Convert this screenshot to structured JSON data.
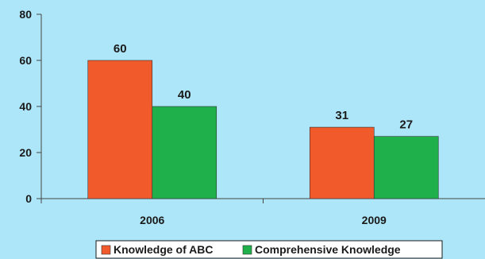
{
  "chart_data": {
    "type": "bar",
    "categories": [
      "2006",
      "2009"
    ],
    "series": [
      {
        "name": "Knowledge of ABC",
        "values": [
          60,
          31
        ],
        "color": "#f15a2b"
      },
      {
        "name": "Comprehensive Knowledge",
        "values": [
          40,
          27
        ],
        "color": "#20b04b"
      }
    ],
    "ylim": [
      0,
      80
    ],
    "yticks": [
      0,
      20,
      40,
      60,
      80
    ],
    "grid": false,
    "legend_position": "bottom",
    "background": "#aee6f9",
    "axis_color": "#444444"
  }
}
